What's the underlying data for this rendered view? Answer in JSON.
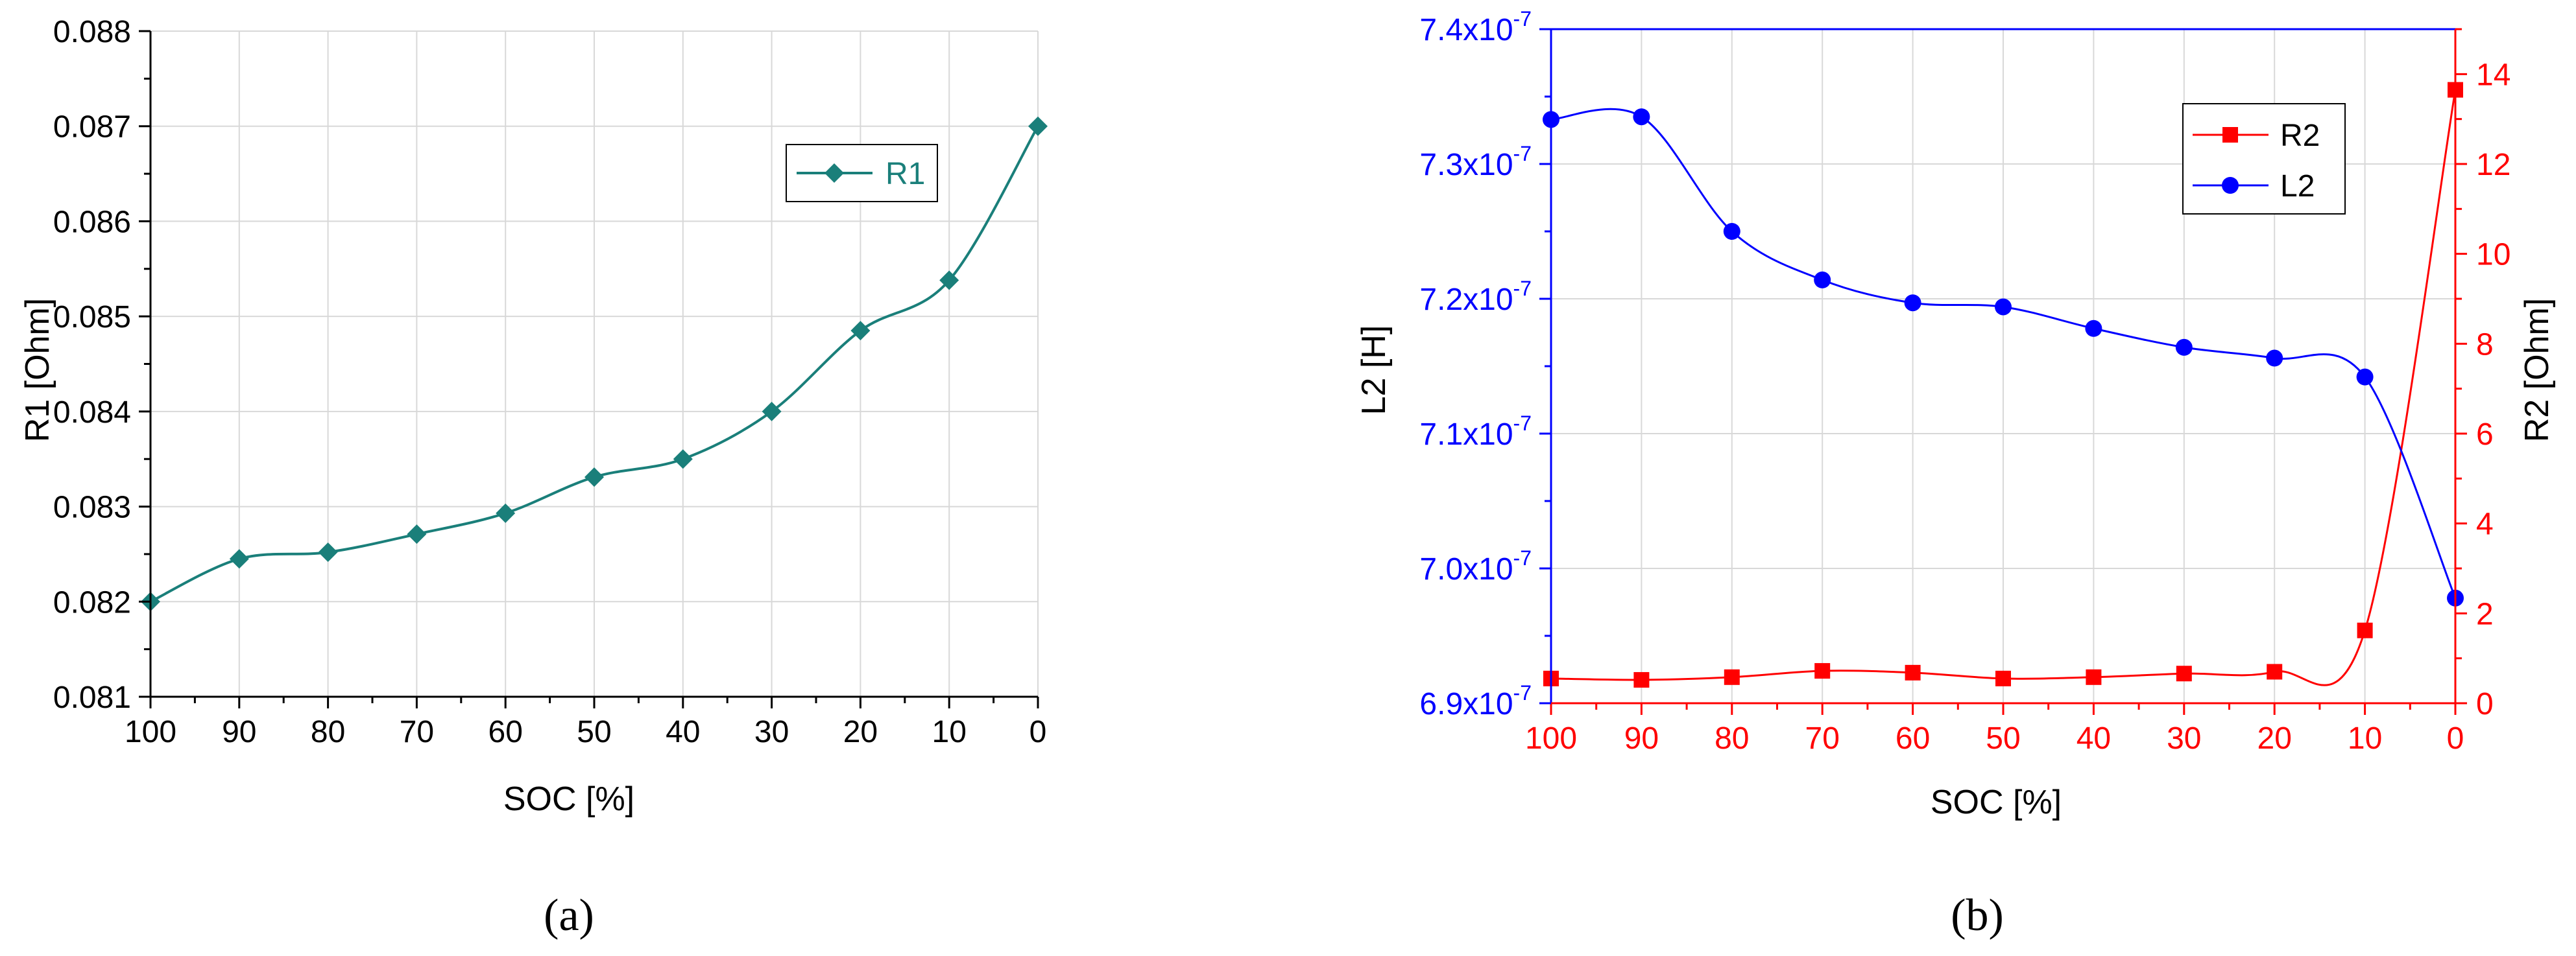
{
  "chart_data": [
    {
      "type": "line",
      "caption": "(a)",
      "xlabel": "SOC [%]",
      "ylabel": "R1 [Ohm]",
      "x": [
        100,
        90,
        80,
        70,
        60,
        50,
        40,
        30,
        20,
        10,
        0
      ],
      "xlim": [
        100,
        0
      ],
      "ylim": [
        0.081,
        0.088
      ],
      "x_ticks": [
        "100",
        "90",
        "80",
        "70",
        "60",
        "50",
        "40",
        "30",
        "20",
        "10",
        "0"
      ],
      "y_ticks": [
        "0.081",
        "0.082",
        "0.083",
        "0.084",
        "0.085",
        "0.086",
        "0.087",
        "0.088"
      ],
      "grid": true,
      "legend_position": "top-right",
      "series": [
        {
          "name": "R1",
          "color": "#1a7f7a",
          "marker": "diamond",
          "values": [
            0.082,
            0.08245,
            0.08252,
            0.08271,
            0.08293,
            0.08331,
            0.0835,
            0.084,
            0.08485,
            0.08538,
            0.087
          ]
        }
      ]
    },
    {
      "type": "line",
      "caption": "(b)",
      "xlabel": "SOC [%]",
      "ylabel": "L2 [H]",
      "y2label": "R2 [Ohm]",
      "x": [
        100,
        90,
        80,
        70,
        60,
        50,
        40,
        30,
        20,
        10,
        0
      ],
      "xlim": [
        100,
        0
      ],
      "ylim": [
        6.9e-07,
        7.4e-07
      ],
      "y2lim": [
        0,
        15
      ],
      "x_ticks": [
        "100",
        "90",
        "80",
        "70",
        "60",
        "50",
        "40",
        "30",
        "20",
        "10",
        "0"
      ],
      "y_ticks": [
        {
          "mant": "6.9x10",
          "exp": "-7"
        },
        {
          "mant": "7.0x10",
          "exp": "-7"
        },
        {
          "mant": "7.1x10",
          "exp": "-7"
        },
        {
          "mant": "7.2x10",
          "exp": "-7"
        },
        {
          "mant": "7.3x10",
          "exp": "-7"
        },
        {
          "mant": "7.4x10",
          "exp": "-7"
        }
      ],
      "y2_ticks": [
        "0",
        "2",
        "4",
        "6",
        "8",
        "10",
        "12",
        "14"
      ],
      "grid": true,
      "legend_position": "top-right",
      "series": [
        {
          "name": "R2",
          "axis": "right",
          "color": "#ff0000",
          "marker": "square",
          "values": [
            0.55,
            0.52,
            0.58,
            0.72,
            0.68,
            0.55,
            0.58,
            0.66,
            0.7,
            1.62,
            13.65
          ]
        },
        {
          "name": "L2",
          "axis": "left",
          "color": "#0000ff",
          "marker": "circle",
          "values": [
            7.333e-07,
            7.335e-07,
            7.25e-07,
            7.214e-07,
            7.197e-07,
            7.194e-07,
            7.178e-07,
            7.164e-07,
            7.156e-07,
            7.142e-07,
            6.978e-07
          ]
        }
      ]
    }
  ]
}
